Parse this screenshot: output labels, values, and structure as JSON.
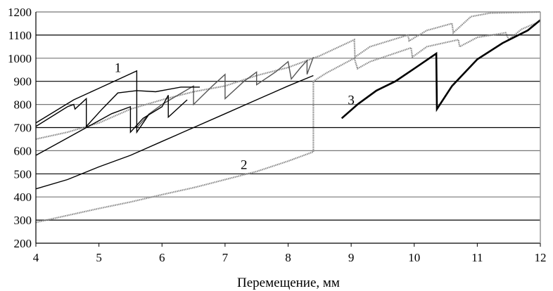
{
  "chart_data": {
    "type": "line",
    "title": "",
    "xlabel": "Перемещение, мм",
    "ylabel": "",
    "xlim": [
      4,
      12
    ],
    "ylim": [
      200,
      1200
    ],
    "xticks": [
      "4",
      "5",
      "6",
      "7",
      "8",
      "9",
      "10",
      "11",
      "12"
    ],
    "yticks": [
      "200",
      "300",
      "400",
      "500",
      "600",
      "700",
      "800",
      "900",
      "1000",
      "1100",
      "1200"
    ],
    "grid": "horizontal",
    "legend": "none",
    "annotations": [
      {
        "text": "1",
        "x": 5.3,
        "y": 940
      },
      {
        "text": "2",
        "x": 7.3,
        "y": 520
      },
      {
        "text": "3",
        "x": 9.0,
        "y": 800
      }
    ],
    "series": [
      {
        "color": "#888888",
        "style": "dotted",
        "points": [
          [
            4,
            290
          ],
          [
            4.5,
            320
          ],
          [
            5,
            350
          ],
          [
            5.5,
            378
          ],
          [
            6,
            410
          ],
          [
            6.5,
            440
          ],
          [
            7,
            475
          ],
          [
            7.5,
            510
          ],
          [
            8,
            555
          ],
          [
            8.4,
            595
          ],
          [
            8.4,
            900
          ],
          [
            8.6,
            935
          ],
          [
            9.05,
            1000
          ],
          [
            9.1,
            955
          ],
          [
            9.3,
            985
          ],
          [
            9.95,
            1045
          ],
          [
            9.97,
            1005
          ],
          [
            10.2,
            1050
          ],
          [
            10.7,
            1080
          ],
          [
            10.72,
            1050
          ],
          [
            11,
            1090
          ],
          [
            11.45,
            1110
          ],
          [
            11.5,
            1080
          ],
          [
            11.7,
            1125
          ],
          [
            12,
            1160
          ]
        ]
      },
      {
        "color": "#888888",
        "style": "dotted",
        "points": [
          [
            4,
            650
          ],
          [
            4.5,
            680
          ],
          [
            5,
            720
          ],
          [
            5.5,
            780
          ],
          [
            6,
            820
          ],
          [
            6.5,
            855
          ],
          [
            7,
            880
          ],
          [
            7.5,
            925
          ],
          [
            8,
            960
          ],
          [
            8.5,
            1010
          ],
          [
            9.05,
            1080
          ],
          [
            9.06,
            1005
          ],
          [
            9.3,
            1050
          ],
          [
            9.9,
            1100
          ],
          [
            9.92,
            1075
          ],
          [
            10.2,
            1120
          ],
          [
            10.6,
            1150
          ],
          [
            10.62,
            1110
          ],
          [
            10.9,
            1180
          ],
          [
            11.2,
            1195
          ],
          [
            12,
            1200
          ]
        ]
      },
      {
        "color": "#555555",
        "style": "solid",
        "points": [
          [
            5.6,
            700
          ],
          [
            5.8,
            760
          ],
          [
            6,
            800
          ],
          [
            6.5,
            880
          ],
          [
            6.5,
            800
          ],
          [
            6.8,
            880
          ],
          [
            7,
            930
          ],
          [
            7,
            825
          ],
          [
            7.3,
            900
          ],
          [
            7.5,
            940
          ],
          [
            7.5,
            885
          ],
          [
            7.8,
            940
          ],
          [
            8,
            985
          ],
          [
            8.05,
            910
          ],
          [
            8.2,
            960
          ],
          [
            8.3,
            990
          ],
          [
            8.3,
            930
          ],
          [
            8.4,
            1005
          ]
        ]
      },
      {
        "color": "#000000",
        "style": "solid",
        "points": [
          [
            4,
            720
          ],
          [
            4.6,
            820
          ],
          [
            5,
            870
          ],
          [
            5.6,
            945
          ],
          [
            5.6,
            680
          ],
          [
            5.8,
            760
          ]
        ]
      },
      {
        "color": "#000000",
        "style": "solid",
        "points": [
          [
            4,
            705
          ],
          [
            4.5,
            790
          ],
          [
            4.6,
            800
          ],
          [
            4.62,
            780
          ],
          [
            4.8,
            825
          ],
          [
            4.8,
            705
          ],
          [
            5.05,
            780
          ],
          [
            5.3,
            850
          ],
          [
            5.6,
            860
          ],
          [
            5.9,
            855
          ],
          [
            6.3,
            875
          ],
          [
            6.6,
            875
          ]
        ]
      },
      {
        "color": "#000000",
        "style": "solid",
        "points": [
          [
            4,
            580
          ],
          [
            4.4,
            640
          ],
          [
            4.8,
            700
          ],
          [
            5.2,
            760
          ],
          [
            5.5,
            790
          ],
          [
            5.5,
            680
          ],
          [
            5.7,
            740
          ],
          [
            6,
            790
          ],
          [
            6.1,
            840
          ],
          [
            6.1,
            745
          ],
          [
            6.4,
            820
          ]
        ]
      },
      {
        "color": "#000000",
        "style": "solid",
        "points": [
          [
            4,
            435
          ],
          [
            4.5,
            475
          ],
          [
            5,
            530
          ],
          [
            5.5,
            580
          ],
          [
            6,
            640
          ],
          [
            6.5,
            700
          ],
          [
            7,
            760
          ],
          [
            7.5,
            820
          ],
          [
            8,
            880
          ],
          [
            8.4,
            925
          ]
        ]
      },
      {
        "color": "#000000",
        "style": "bold",
        "points": [
          [
            8.85,
            740
          ],
          [
            9.1,
            800
          ],
          [
            9.4,
            860
          ],
          [
            9.7,
            900
          ],
          [
            10,
            955
          ],
          [
            10.35,
            1020
          ],
          [
            10.36,
            780
          ],
          [
            10.6,
            880
          ],
          [
            11,
            995
          ],
          [
            11.4,
            1065
          ],
          [
            11.8,
            1120
          ],
          [
            12,
            1165
          ]
        ]
      }
    ]
  }
}
